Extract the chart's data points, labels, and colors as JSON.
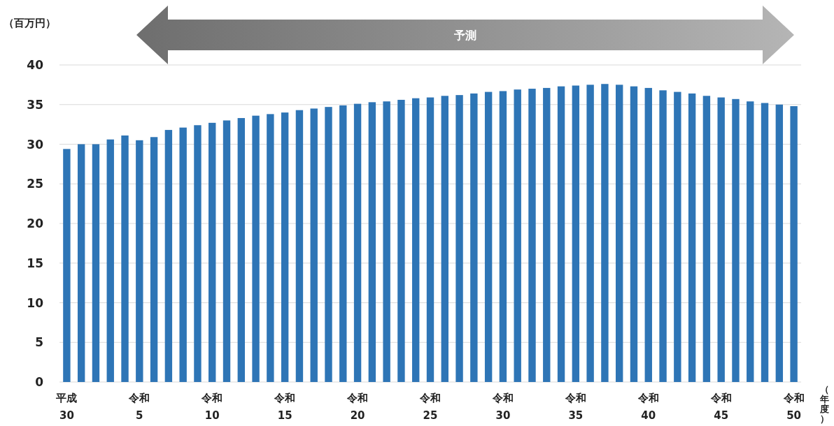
{
  "chart_data": {
    "type": "bar",
    "ylabel": "（百万円）",
    "xlabel": "（年度）",
    "annotations": [
      "予測"
    ],
    "categories": [
      "平成\n30",
      null,
      null,
      null,
      null,
      "令和\n5",
      null,
      null,
      null,
      null,
      "令和\n10",
      null,
      null,
      null,
      null,
      "令和\n15",
      null,
      null,
      null,
      null,
      "令和\n20",
      null,
      null,
      null,
      null,
      "令和\n25",
      null,
      null,
      null,
      null,
      "令和\n30",
      null,
      null,
      null,
      null,
      "令和\n35",
      null,
      null,
      null,
      null,
      "令和\n40",
      null,
      null,
      null,
      null,
      "令和\n45",
      null,
      null,
      null,
      null,
      "令和\n50"
    ],
    "series": [
      {
        "color": "#2e75b6",
        "values": [
          29.4,
          30.0,
          30.0,
          30.6,
          31.1,
          30.5,
          30.9,
          31.8,
          32.1,
          32.4,
          32.7,
          33.0,
          33.3,
          33.6,
          33.8,
          34.0,
          34.3,
          34.5,
          34.7,
          34.9,
          35.1,
          35.3,
          35.4,
          35.6,
          35.8,
          35.9,
          36.1,
          36.2,
          36.4,
          36.6,
          36.7,
          36.9,
          37.0,
          37.1,
          37.3,
          37.4,
          37.5,
          37.6,
          37.5,
          37.3,
          37.1,
          36.8,
          36.6,
          36.4,
          36.1,
          35.9,
          35.7,
          35.4,
          35.2,
          35.0,
          34.8
        ]
      }
    ],
    "ylim": [
      0,
      40
    ],
    "yticks": [
      0,
      5,
      10,
      15,
      20,
      25,
      30,
      35,
      40
    ],
    "grid": "y"
  }
}
